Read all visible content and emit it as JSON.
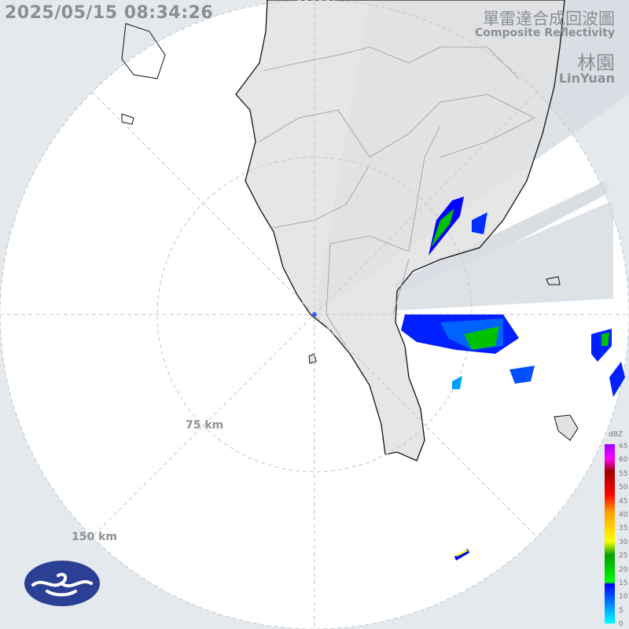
{
  "timestamp": "2025/05/15 08:34:26",
  "title_zh": "單雷達合成回波圖",
  "title_en": "Composite Reflectivity",
  "station_zh": "林園",
  "station_en": "LinYuan",
  "range_rings": [
    "75 km",
    "150 km"
  ],
  "legend": {
    "unit": "dBZ",
    "ticks": [
      "65",
      "60",
      "55",
      "50",
      "45",
      "40",
      "35",
      "30",
      "25",
      "20",
      "15",
      "10",
      "5",
      "0"
    ],
    "colors": [
      "#00ffff",
      "#0090ff",
      "#0000ff",
      "#00ff00",
      "#00a000",
      "#ffff00",
      "#ffa000",
      "#ff0000",
      "#a00000",
      "#ff00ff",
      "#9900ff"
    ]
  },
  "colors": {
    "land": "#e0e0e0",
    "coverage": "#ffffff",
    "outside": "#e4e9ee",
    "blocked": "#d2d8de",
    "coast": "#111111"
  },
  "logo": "cwa-logo"
}
